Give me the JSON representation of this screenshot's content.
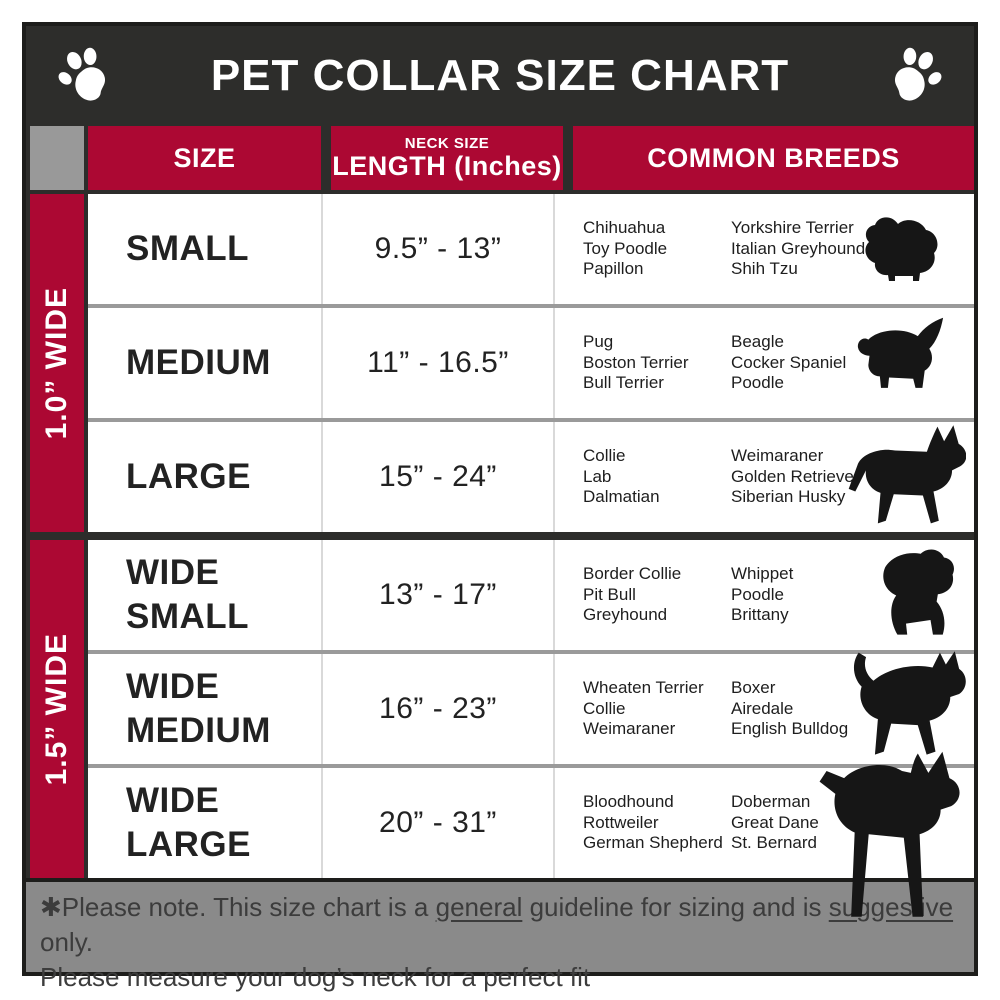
{
  "colors": {
    "header_bg": "#2d2d2b",
    "accent_red": "#ac0833",
    "corner_gray": "#999999",
    "footer_gray": "#8a8a8a",
    "row_divider_gray": "#9a9a9a",
    "text_dark": "#1e1e1e"
  },
  "header": {
    "title": "PET COLLAR SIZE CHART",
    "left_icon": "paw-icon",
    "right_icon": "paw-icon"
  },
  "table": {
    "columns": [
      {
        "label": "SIZE"
      },
      {
        "sub_label": "NECK SIZE",
        "label": "LENGTH (Inches)"
      },
      {
        "label": "COMMON BREEDS"
      }
    ],
    "width_groups": [
      {
        "label": "1.0” WIDE"
      },
      {
        "label": "1.5” WIDE"
      }
    ],
    "rows": [
      {
        "size": "SMALL",
        "length": "9.5” - 13”",
        "breeds_col1": [
          "Chihuahua",
          "Toy Poodle",
          "Papillon"
        ],
        "breeds_col2": [
          "Yorkshire Terrier",
          "Italian Greyhound",
          "Shih Tzu"
        ],
        "dog_icon": "pomeranian-silhouette"
      },
      {
        "size": "MEDIUM",
        "length": "11” - 16.5”",
        "breeds_col1": [
          "Pug",
          "Boston Terrier",
          "Bull Terrier"
        ],
        "breeds_col2": [
          "Beagle",
          "Cocker Spaniel",
          "Poodle"
        ],
        "dog_icon": "beagle-silhouette"
      },
      {
        "size": "LARGE",
        "length": "15” - 24”",
        "breeds_col1": [
          "Collie",
          "Lab",
          "Dalmatian"
        ],
        "breeds_col2": [
          "Weimaraner",
          "Golden Retriever",
          "Siberian Husky"
        ],
        "dog_icon": "shepherd-silhouette"
      },
      {
        "size": "WIDE SMALL",
        "length": "13” - 17”",
        "breeds_col1": [
          "Border Collie",
          "Pit Bull",
          "Greyhound"
        ],
        "breeds_col2": [
          "Whippet",
          "Poodle",
          "Brittany"
        ],
        "dog_icon": "bulldog-silhouette"
      },
      {
        "size": "WIDE MEDIUM",
        "length": "16” - 23”",
        "breeds_col1": [
          "Wheaten Terrier",
          "Collie",
          "Weimaraner"
        ],
        "breeds_col2": [
          "Boxer",
          "Airedale",
          "English Bulldog"
        ],
        "dog_icon": "pitbull-silhouette"
      },
      {
        "size": "WIDE LARGE",
        "length": "20” - 31”",
        "breeds_col1": [
          "Bloodhound",
          "Rottweiler",
          "German Shepherd"
        ],
        "breeds_col2": [
          "Doberman",
          "Great Dane",
          "St. Bernard"
        ],
        "dog_icon": "doberman-silhouette"
      }
    ]
  },
  "footer": {
    "p1": "✱Please note. This size chart is a ",
    "u1": "general",
    "p2": " guideline for sizing and is ",
    "u2": "suggestive",
    "p3": " only.",
    "line2": "Please measure your dog’s neck for a perfect fit"
  }
}
